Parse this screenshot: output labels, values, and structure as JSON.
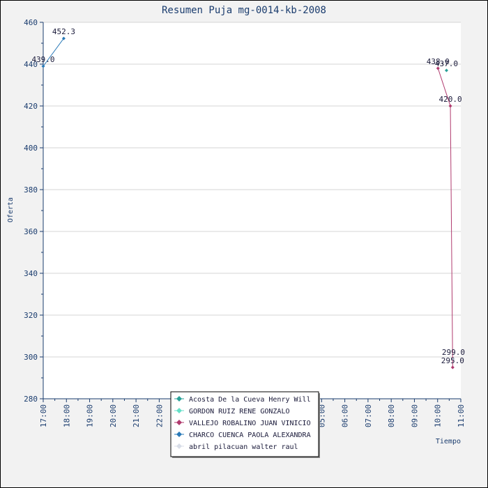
{
  "chart_data": {
    "type": "line",
    "title": "Resumen Puja mg-0014-kb-2008",
    "xlabel": "Tiempo",
    "ylabel": "Oferta",
    "ylim": [
      280,
      460
    ],
    "y_ticks": [
      "280",
      "300",
      "320",
      "340",
      "360",
      "380",
      "400",
      "420",
      "440",
      "460"
    ],
    "x_ticks": [
      "17:00",
      "18:00",
      "19:00",
      "20:00",
      "21:00",
      "22:00",
      "23:00",
      "00:00",
      "01:00",
      "02:00",
      "03:00",
      "04:00",
      "05:00",
      "06:00",
      "07:00",
      "08:00",
      "09:00",
      "10:00",
      "11:00"
    ],
    "xlim_hours": [
      17,
      35
    ],
    "grid": true,
    "legend_position": "bottom-center",
    "series": [
      {
        "name": "Acosta De la Cueva Henry Will",
        "color": "#2aa198",
        "points": [
          {
            "x": "10:23",
            "y": 437.0,
            "label": "437.0"
          }
        ]
      },
      {
        "name": "GORDON RUIZ RENE GONZALO",
        "color": "#66e0c8",
        "points": []
      },
      {
        "name": "VALLEJO ROBALINO JUAN VINICIO",
        "color": "#b03a6e",
        "points": [
          {
            "x": "10:01",
            "y": 438.0,
            "label": "438.0"
          },
          {
            "x": "10:33",
            "y": 420.0,
            "label": "420.0"
          },
          {
            "x": "10:39",
            "y": 295.0,
            "label": "295.0"
          }
        ]
      },
      {
        "name": "CHARCO CUENCA PAOLA ALEXANDRA",
        "color": "#2a7ab8",
        "points": [
          {
            "x": "17:00",
            "y": 439.0,
            "label": "439.0"
          },
          {
            "x": "17:53",
            "y": 452.3,
            "label": "452.3"
          }
        ]
      },
      {
        "name": "abril pilacuan walter raul",
        "color": "#d8dde8",
        "points": [
          {
            "x": "10:41",
            "y": 299.0,
            "label": "299.0"
          }
        ]
      }
    ]
  }
}
